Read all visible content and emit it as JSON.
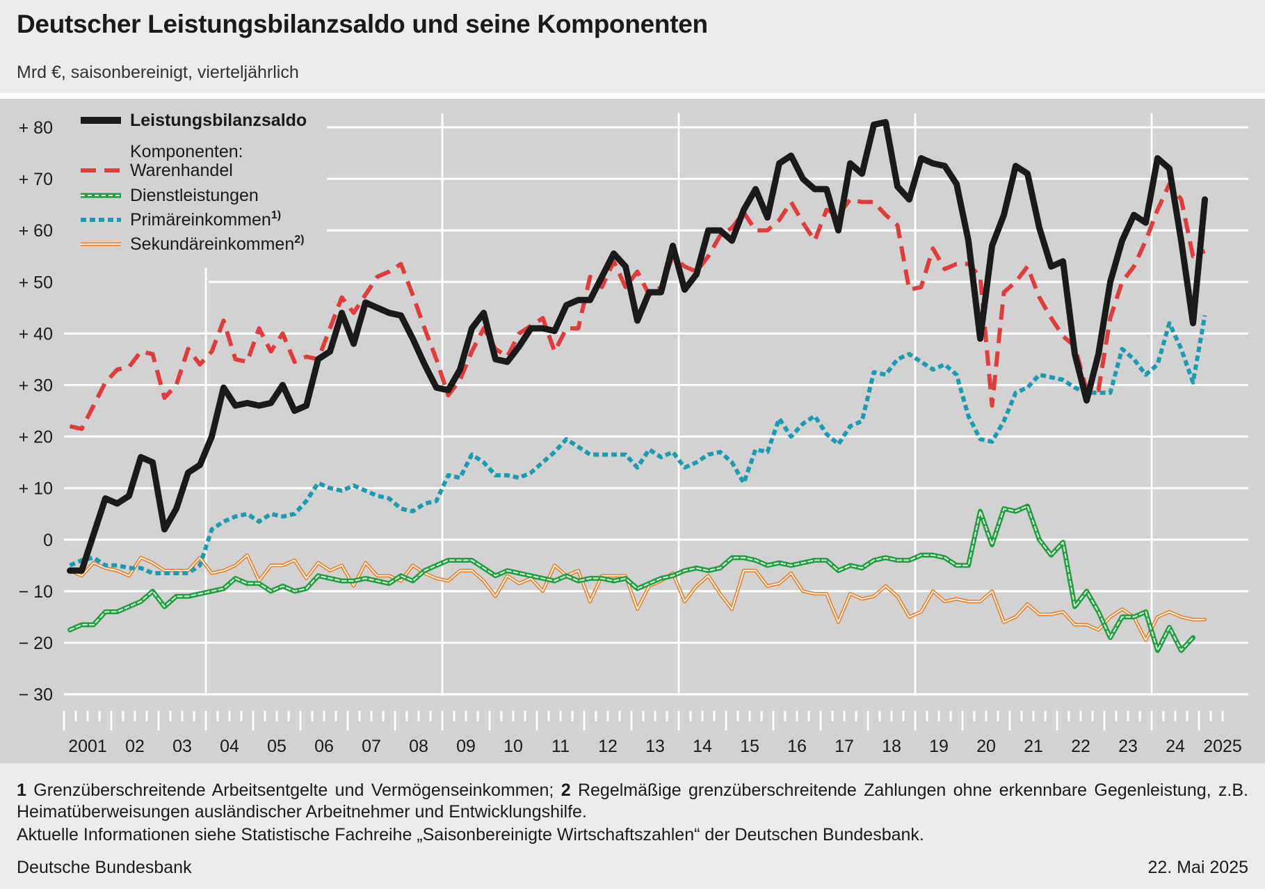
{
  "title": "Deutscher Leistungsbilanzsaldo und seine Komponenten",
  "subtitle": "Mrd €, saisonbereinigt, vierteljährlich",
  "footnotes": {
    "n1": "1",
    "t1": " Grenzüberschreitende Arbeitsentgelte und Vermögenseinkommen; ",
    "n2": "2",
    "t2": " Regelmäßige grenzüberschreitende Zahlungen ohne erkennbare Gegenleistung, z.B. Heimatüberweisungen ausländischer Arbeitnehmer und Entwicklungshilfe.",
    "info": "Aktuelle Informationen siehe Statistische Fachreihe „Saisonbereinigte Wirtschaftszahlen“ der Deutschen Bundesbank."
  },
  "source": "Deutsche Bundesbank",
  "date": "22. Mai 2025",
  "legend_subheader": "Komponenten:",
  "colors": {
    "plot_background": "#d2d2d2",
    "page_background": "#ececec",
    "grid": "#ffffff"
  },
  "chart_data": {
    "type": "line",
    "x_start": "2001-Q1",
    "frequency": "quarterly",
    "x_tick_labels": [
      "2001",
      "02",
      "03",
      "04",
      "05",
      "06",
      "07",
      "08",
      "09",
      "10",
      "11",
      "12",
      "13",
      "14",
      "15",
      "16",
      "17",
      "18",
      "19",
      "20",
      "21",
      "22",
      "23",
      "24",
      "2025"
    ],
    "y_tick_labels": [
      "+ 80",
      "+ 70",
      "+ 60",
      "+ 50",
      "+ 40",
      "+ 30",
      "+ 20",
      "+ 10",
      "0",
      "− 10",
      "− 20",
      "− 30"
    ],
    "ylim": [
      -30,
      80
    ],
    "y_ticks": [
      80,
      70,
      60,
      50,
      40,
      30,
      20,
      10,
      0,
      -10,
      -20,
      -30
    ],
    "grid": true,
    "legend_position": "top-left",
    "series": [
      {
        "name": "Leistungsbilanzsaldo",
        "style": "solid-thick",
        "color": "#1a1a1a",
        "values": [
          -6,
          -6,
          1,
          8,
          7,
          8.5,
          16,
          15,
          2,
          6,
          13,
          14.5,
          20,
          29.5,
          26,
          26.5,
          26,
          26.5,
          30,
          25,
          26,
          35,
          36.5,
          44,
          38,
          46,
          45,
          44,
          43.5,
          39,
          34,
          29.5,
          29,
          33,
          41,
          44,
          35,
          34.5,
          37.5,
          41,
          41,
          40.5,
          45.5,
          46.5,
          46.5,
          51,
          55.5,
          53,
          42.5,
          48,
          48,
          57,
          48.5,
          51.5,
          60,
          60,
          58,
          64,
          68,
          62.5,
          73,
          74.5,
          70,
          68,
          68,
          60,
          73,
          71,
          80.5,
          81,
          68.5,
          66,
          74,
          73,
          72.5,
          69,
          58,
          39,
          57,
          63,
          72.5,
          71,
          60.5,
          53,
          54,
          36,
          27,
          36,
          50,
          58,
          63,
          61.5,
          74,
          72,
          58,
          42,
          66
        ]
      },
      {
        "name": "Warenhandel",
        "style": "dashed",
        "color": "#e03c3c",
        "values": [
          22,
          21.5,
          26,
          30.5,
          33,
          33.5,
          36.5,
          36,
          27.5,
          30,
          37,
          34,
          36.5,
          42.5,
          35,
          34.5,
          41,
          36.5,
          40,
          34.5,
          35.5,
          35,
          41,
          47,
          44,
          47.5,
          51,
          52,
          53.5,
          47.5,
          41,
          35,
          28,
          31,
          36.5,
          41,
          37,
          35.5,
          40,
          41.5,
          43,
          36.5,
          41,
          41,
          51,
          49,
          54,
          49,
          52,
          47.5,
          49,
          55,
          53,
          52,
          55,
          59,
          60.5,
          63.5,
          60,
          60,
          62,
          65.5,
          61.5,
          58,
          64,
          63,
          66,
          65.5,
          65.5,
          63,
          61,
          48.5,
          49,
          56.5,
          52.5,
          53.5,
          53.5,
          51,
          26,
          48,
          50,
          53,
          47,
          43,
          39.5,
          37.5,
          29,
          29,
          43,
          50,
          53,
          58,
          64,
          69,
          66,
          55,
          56
        ]
      },
      {
        "name": "Dienstleistungen",
        "style": "double-green",
        "color": "#1e9e3e",
        "values": [
          -17.5,
          -16.5,
          -16.5,
          -14,
          -14,
          -13,
          -12,
          -10,
          -13,
          -11,
          -11,
          -10.5,
          -10,
          -9.5,
          -7.5,
          -8.5,
          -8.5,
          -10,
          -9,
          -10,
          -9.5,
          -7,
          -7.5,
          -8,
          -8,
          -7.5,
          -8,
          -8.5,
          -7,
          -8,
          -6,
          -5,
          -4,
          -4,
          -4,
          -5.5,
          -7,
          -6,
          -6.5,
          -7,
          -7.5,
          -8,
          -7,
          -8,
          -7.5,
          -7.5,
          -8,
          -7.5,
          -9.5,
          -8.5,
          -7.5,
          -7,
          -6,
          -5.5,
          -6,
          -5.5,
          -3.5,
          -3.5,
          -4,
          -5,
          -4.5,
          -5,
          -4.5,
          -4,
          -4,
          -6,
          -5,
          -5.5,
          -4,
          -3.5,
          -4,
          -4,
          -3,
          -3,
          -3.5,
          -5,
          -5,
          5.5,
          -1,
          6,
          5.5,
          6.5,
          0,
          -3,
          -0.5,
          -13,
          -10,
          -14,
          -19,
          -15,
          -15,
          -14,
          -21.5,
          -17,
          -21.5,
          -19
        ]
      },
      {
        "name": "Primäreinkommen",
        "style": "dotted",
        "color": "#1a9bb0",
        "values": [
          -5,
          -4,
          -3.5,
          -5,
          -5,
          -5.5,
          -5.5,
          -6.5,
          -6.5,
          -6.5,
          -6.5,
          -5,
          2,
          3.5,
          4.5,
          5,
          3.5,
          5,
          4.5,
          5,
          7.5,
          11,
          10,
          9.5,
          10.5,
          9.5,
          8.5,
          8,
          6,
          5.5,
          7,
          7.5,
          12.5,
          12,
          16.5,
          15,
          12.5,
          12.5,
          12,
          13,
          15,
          17,
          19.5,
          18,
          16.5,
          16.5,
          16.5,
          16.5,
          14,
          17.5,
          16,
          17,
          14,
          15,
          16.5,
          17,
          15,
          11,
          17.5,
          17,
          23.5,
          20,
          22.5,
          24,
          20.5,
          18.5,
          22,
          23,
          32.5,
          32,
          35,
          36,
          34.5,
          33,
          34,
          32,
          24,
          19.5,
          19,
          23,
          28.5,
          29.5,
          32,
          31.5,
          31,
          29.5,
          28.5,
          28.5,
          28.5,
          37,
          35,
          32,
          34,
          42,
          37,
          30.5,
          43.5
        ]
      },
      {
        "name": "Sekundäreinkommen",
        "style": "double-orange",
        "color": "#f07a1e",
        "values": [
          -6,
          -7,
          -4.5,
          -5.5,
          -6,
          -7,
          -3.5,
          -4.5,
          -6,
          -6,
          -6,
          -3.5,
          -6.5,
          -6,
          -5,
          -3,
          -8,
          -5,
          -5,
          -4,
          -7.5,
          -4.5,
          -6,
          -5,
          -9,
          -4.5,
          -7,
          -7,
          -8,
          -5,
          -6.5,
          -7.5,
          -8,
          -6,
          -6,
          -8,
          -11,
          -7,
          -8.5,
          -7.5,
          -10,
          -5,
          -7,
          -6,
          -12,
          -7,
          -7,
          -7,
          -13.5,
          -9,
          -8,
          -6.5,
          -12,
          -9,
          -7,
          -10.5,
          -13.5,
          -6,
          -6,
          -9,
          -8.5,
          -6.5,
          -10,
          -10.5,
          -10.5,
          -16,
          -10.5,
          -11.5,
          -11,
          -9,
          -11,
          -15,
          -14,
          -10,
          -12,
          -11.5,
          -12,
          -12,
          -10,
          -16,
          -15,
          -12.5,
          -14.5,
          -14.5,
          -14,
          -16.5,
          -16.5,
          -17.5,
          -15,
          -13.5,
          -15,
          -19.5,
          -15,
          -14,
          -15,
          -15.5,
          -15.5
        ]
      }
    ]
  }
}
